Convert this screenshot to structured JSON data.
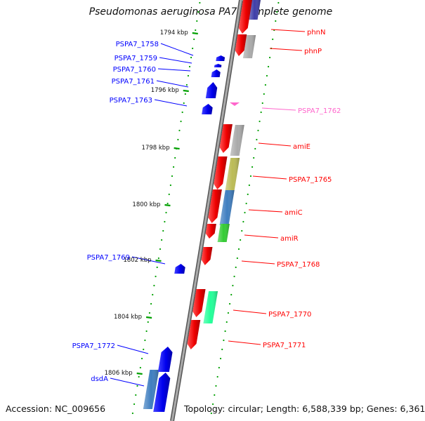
{
  "title": "Pseudomonas aeruginosa PA7, complete genome",
  "accession_line": "Accession: NC_009656",
  "topology_line": "Topology: circular; Length: 6,588,339 bp; Genes: 6,361",
  "kbp_marks": [
    "1794 kbp",
    "1796 kbp",
    "1798 kbp",
    "1800 kbp",
    "1802 kbp",
    "1804 kbp",
    "1806 kbp"
  ],
  "colors": {
    "forward_gene": "#ff0000",
    "reverse_gene": "#0000ff",
    "pseudo_gene": "#ff66cc",
    "axis_ticks": "#00a000",
    "backbone": "#888888"
  },
  "reverse_strand_labels": [
    "PSPA7_1758",
    "PSPA7_1759",
    "PSPA7_1760",
    "PSPA7_1761",
    "PSPA7_1763",
    "PSPA7_1769",
    "PSPA7_1772",
    "dsdA"
  ],
  "forward_strand_labels": [
    "phnN",
    "phnP",
    "PSPA7_1762",
    "amiE",
    "PSPA7_1765",
    "amiC",
    "amiR",
    "PSPA7_1768",
    "PSPA7_1770",
    "PSPA7_1771"
  ]
}
